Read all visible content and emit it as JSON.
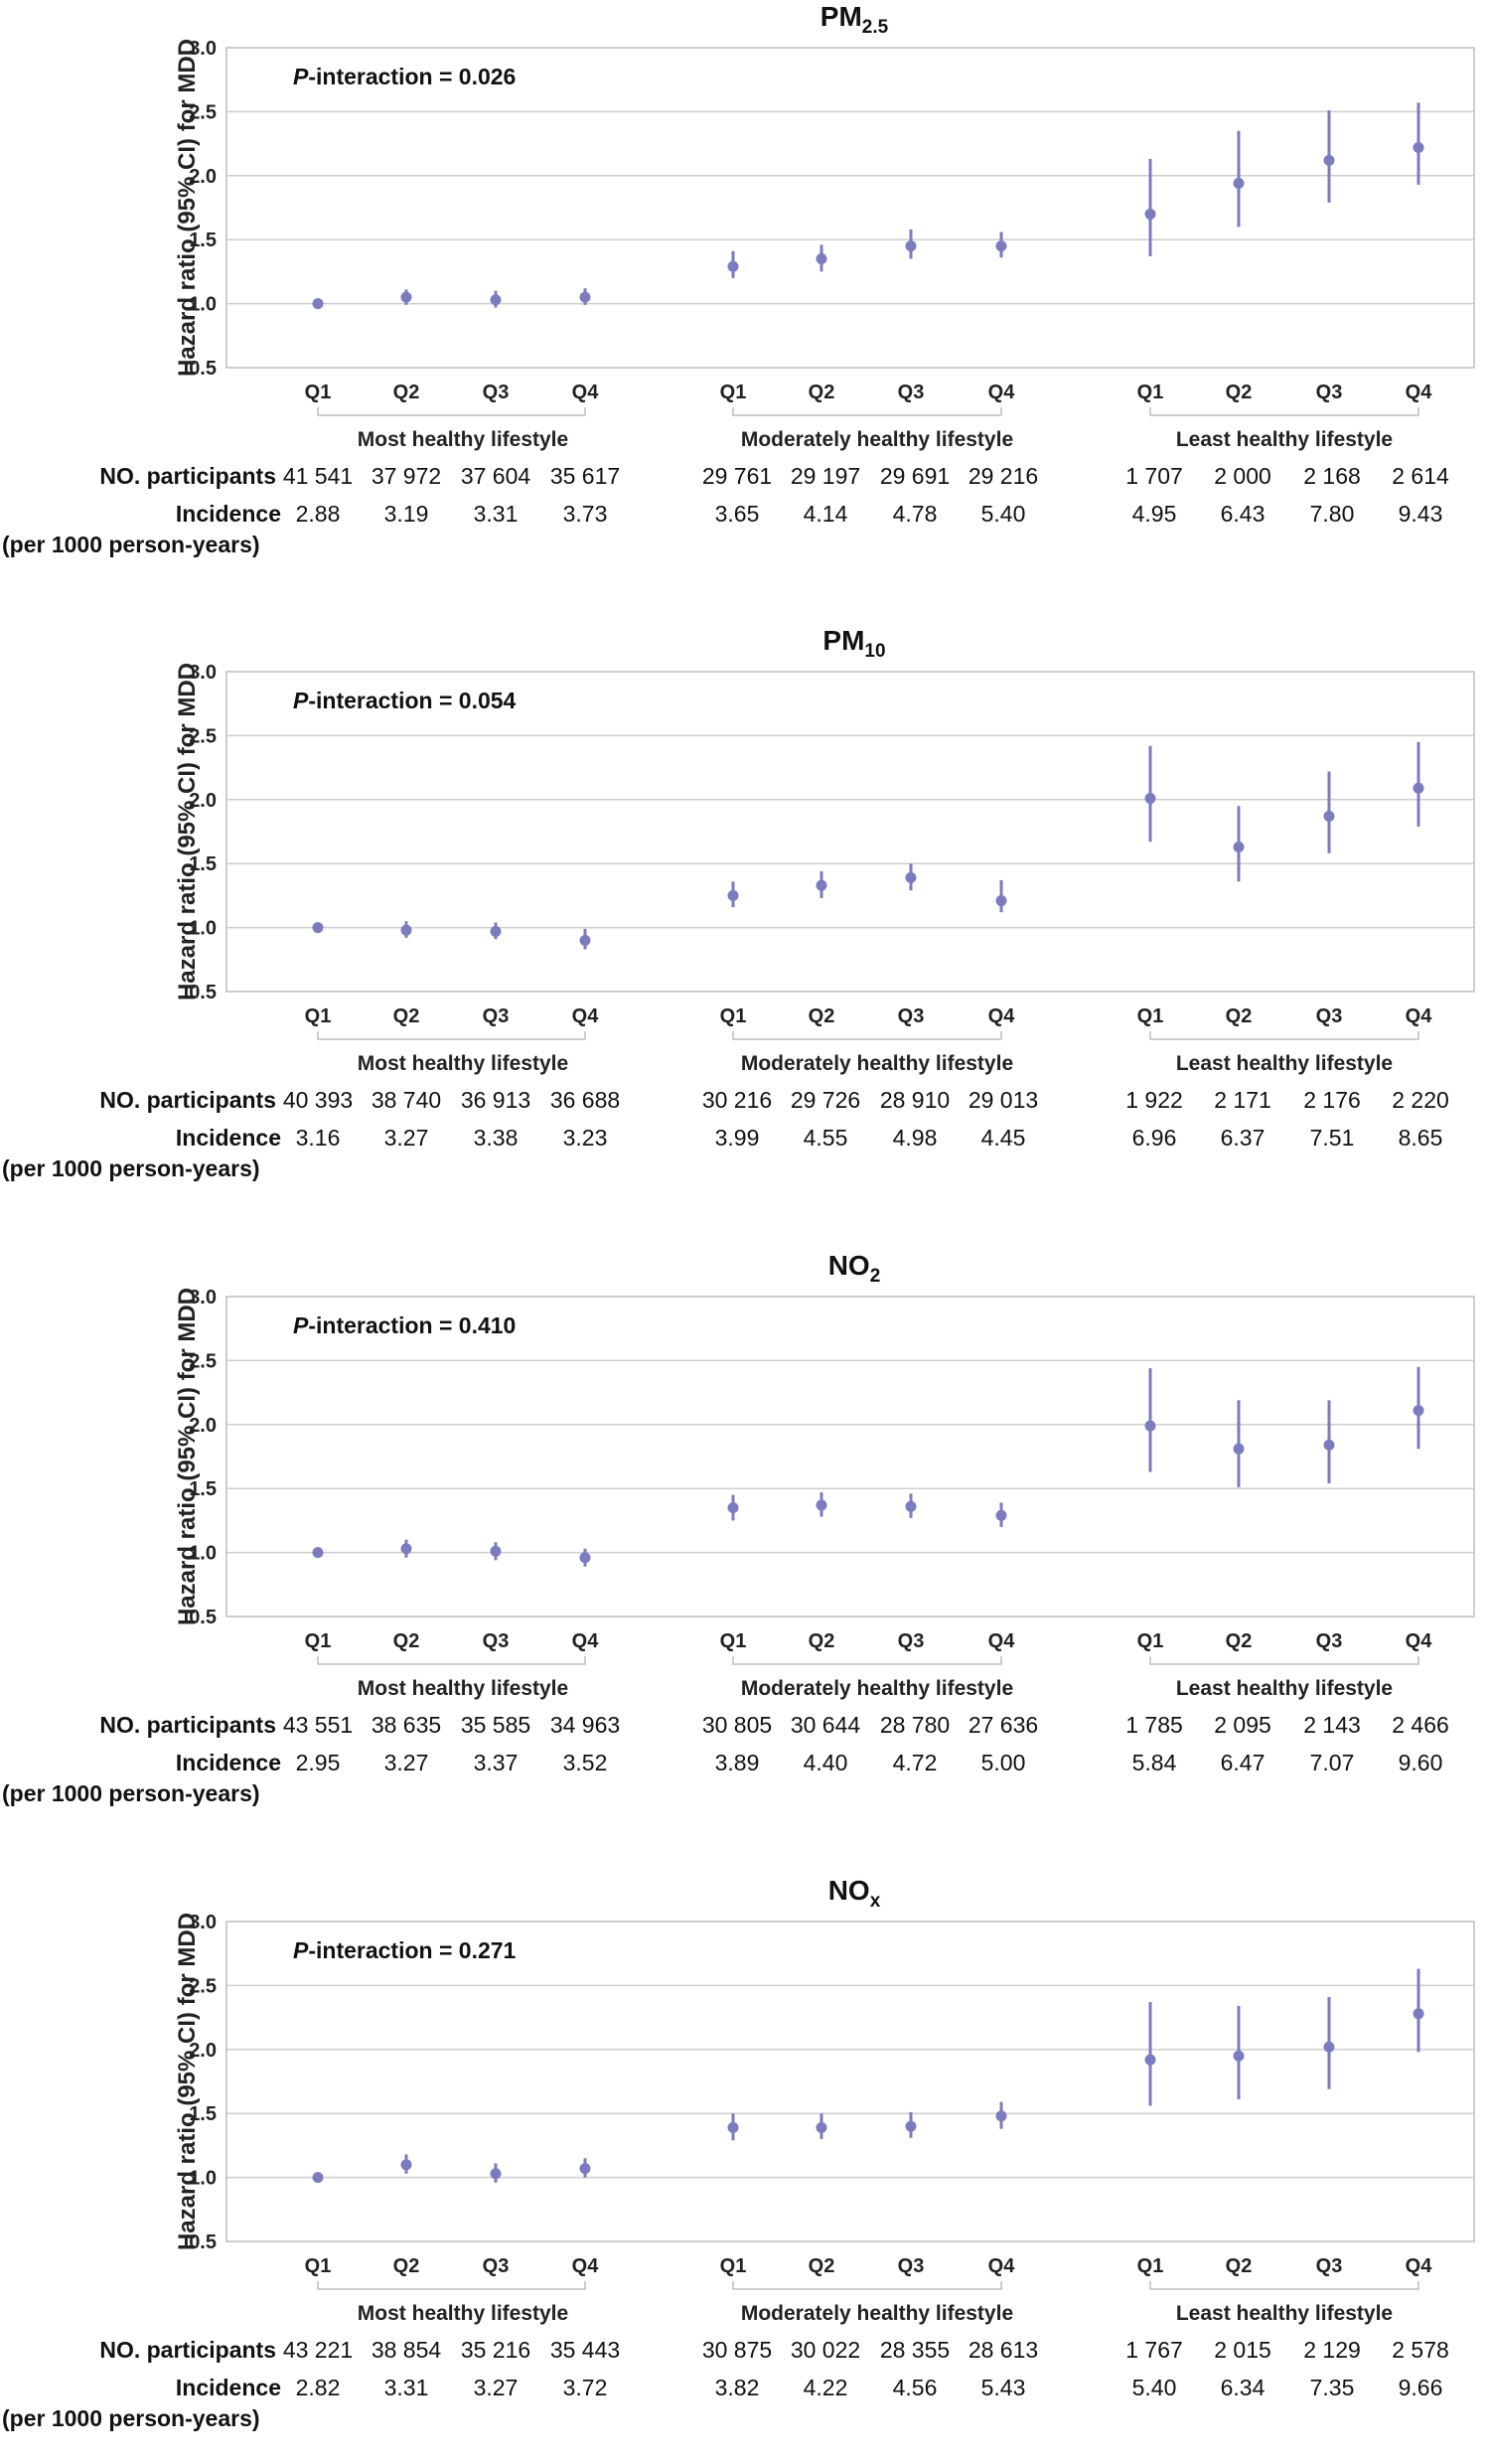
{
  "figure": {
    "y_axis_label": "Hazard ratio (95% CI) for MDD",
    "row_label_participants": "NO. participants",
    "row_label_incidence": "Incidence",
    "row_label_incidence_unit": "(per 1000 person-years)",
    "groups": [
      "Most healthy lifestyle",
      "Moderately healthy lifestyle",
      "Least healthy lifestyle"
    ],
    "quartiles": [
      "Q1",
      "Q2",
      "Q3",
      "Q4"
    ],
    "y_ticks": [
      "0.5",
      "1.0",
      "1.5",
      "2.0",
      "2.5",
      "3.0"
    ],
    "point_color": "#7b7bbf",
    "grid_color": "#cfcfcf"
  },
  "chart_data": [
    {
      "type": "scatter",
      "title_main": "PM",
      "title_sub": "2.5",
      "p_interaction_label": "P",
      "p_interaction_text": "-interaction = 0.026",
      "ylim": [
        0.5,
        3.0
      ],
      "hr": [
        [
          1.0,
          1.05,
          1.03,
          1.05
        ],
        [
          1.29,
          1.35,
          1.45,
          1.45
        ],
        [
          1.7,
          1.94,
          2.12,
          2.22
        ]
      ],
      "lo": [
        [
          1.0,
          0.99,
          0.97,
          0.99
        ],
        [
          1.2,
          1.25,
          1.35,
          1.36
        ],
        [
          1.37,
          1.6,
          1.79,
          1.93
        ]
      ],
      "hi": [
        [
          1.0,
          1.11,
          1.1,
          1.12
        ],
        [
          1.41,
          1.46,
          1.58,
          1.56
        ],
        [
          2.13,
          2.35,
          2.51,
          2.57
        ]
      ],
      "participants": [
        [
          "41 541",
          "37 972",
          "37 604",
          "35 617"
        ],
        [
          "29 761",
          "29 197",
          "29 691",
          "29 216"
        ],
        [
          "1 707",
          "2 000",
          "2 168",
          "2 614"
        ]
      ],
      "incidence": [
        [
          "2.88",
          "3.19",
          "3.31",
          "3.73"
        ],
        [
          "3.65",
          "4.14",
          "4.78",
          "5.40"
        ],
        [
          "4.95",
          "6.43",
          "7.80",
          "9.43"
        ]
      ]
    },
    {
      "type": "scatter",
      "title_main": "PM",
      "title_sub": "10",
      "p_interaction_label": "P",
      "p_interaction_text": "-interaction = 0.054",
      "ylim": [
        0.5,
        3.0
      ],
      "hr": [
        [
          1.0,
          0.98,
          0.97,
          0.9
        ],
        [
          1.25,
          1.33,
          1.39,
          1.21
        ],
        [
          2.01,
          1.63,
          1.87,
          2.09
        ]
      ],
      "lo": [
        [
          1.0,
          0.92,
          0.91,
          0.83
        ],
        [
          1.16,
          1.23,
          1.29,
          1.12
        ],
        [
          1.67,
          1.36,
          1.58,
          1.79
        ]
      ],
      "hi": [
        [
          1.0,
          1.05,
          1.04,
          0.99
        ],
        [
          1.36,
          1.44,
          1.5,
          1.37
        ],
        [
          2.42,
          1.95,
          2.22,
          2.45
        ]
      ],
      "participants": [
        [
          "40 393",
          "38 740",
          "36 913",
          "36 688"
        ],
        [
          "30 216",
          "29 726",
          "28 910",
          "29 013"
        ],
        [
          "1 922",
          "2 171",
          "2 176",
          "2 220"
        ]
      ],
      "incidence": [
        [
          "3.16",
          "3.27",
          "3.38",
          "3.23"
        ],
        [
          "3.99",
          "4.55",
          "4.98",
          "4.45"
        ],
        [
          "6.96",
          "6.37",
          "7.51",
          "8.65"
        ]
      ]
    },
    {
      "type": "scatter",
      "title_main": "NO",
      "title_sub": "2",
      "p_interaction_label": "P",
      "p_interaction_text": "-interaction = 0.410",
      "ylim": [
        0.5,
        3.0
      ],
      "hr": [
        [
          1.0,
          1.03,
          1.01,
          0.96
        ],
        [
          1.35,
          1.37,
          1.36,
          1.29
        ],
        [
          1.99,
          1.81,
          1.84,
          2.11
        ]
      ],
      "lo": [
        [
          1.0,
          0.96,
          0.94,
          0.89
        ],
        [
          1.25,
          1.28,
          1.27,
          1.2
        ],
        [
          1.63,
          1.51,
          1.54,
          1.81
        ]
      ],
      "hi": [
        [
          1.0,
          1.1,
          1.08,
          1.03
        ],
        [
          1.45,
          1.47,
          1.46,
          1.39
        ],
        [
          2.44,
          2.19,
          2.19,
          2.45
        ]
      ],
      "participants": [
        [
          "43 551",
          "38 635",
          "35 585",
          "34 963"
        ],
        [
          "30 805",
          "30 644",
          "28 780",
          "27 636"
        ],
        [
          "1 785",
          "2 095",
          "2 143",
          "2 466"
        ]
      ],
      "incidence": [
        [
          "2.95",
          "3.27",
          "3.37",
          "3.52"
        ],
        [
          "3.89",
          "4.40",
          "4.72",
          "5.00"
        ],
        [
          "5.84",
          "6.47",
          "7.07",
          "9.60"
        ]
      ]
    },
    {
      "type": "scatter",
      "title_main": "NO",
      "title_sub": "x",
      "p_interaction_label": "P",
      "p_interaction_text": "-interaction = 0.271",
      "ylim": [
        0.5,
        3.0
      ],
      "hr": [
        [
          1.0,
          1.1,
          1.03,
          1.07
        ],
        [
          1.39,
          1.39,
          1.4,
          1.48
        ],
        [
          1.92,
          1.95,
          2.02,
          2.28
        ]
      ],
      "lo": [
        [
          1.0,
          1.03,
          0.96,
          1.0
        ],
        [
          1.29,
          1.3,
          1.31,
          1.38
        ],
        [
          1.56,
          1.61,
          1.69,
          1.98
        ]
      ],
      "hi": [
        [
          1.0,
          1.18,
          1.11,
          1.15
        ],
        [
          1.5,
          1.5,
          1.51,
          1.59
        ],
        [
          2.37,
          2.34,
          2.41,
          2.63
        ]
      ],
      "participants": [
        [
          "43 221",
          "38 854",
          "35 216",
          "35 443"
        ],
        [
          "30 875",
          "30 022",
          "28 355",
          "28 613"
        ],
        [
          "1 767",
          "2 015",
          "2 129",
          "2 578"
        ]
      ],
      "incidence": [
        [
          "2.82",
          "3.31",
          "3.27",
          "3.72"
        ],
        [
          "3.82",
          "4.22",
          "4.56",
          "5.43"
        ],
        [
          "5.40",
          "6.34",
          "7.35",
          "9.66"
        ]
      ]
    }
  ]
}
